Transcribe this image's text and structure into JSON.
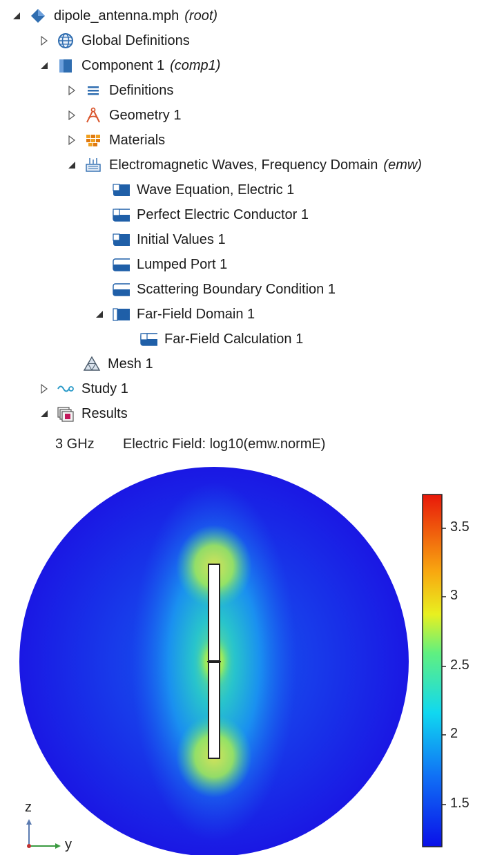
{
  "tree": {
    "root": {
      "label": "dipole_antenna.mph",
      "tag": "(root)"
    },
    "global_definitions": {
      "label": "Global Definitions"
    },
    "component": {
      "label": "Component 1",
      "tag": "(comp1)"
    },
    "definitions": {
      "label": "Definitions"
    },
    "geometry": {
      "label": "Geometry 1"
    },
    "materials": {
      "label": "Materials"
    },
    "physics": {
      "label": "Electromagnetic Waves, Frequency Domain",
      "tag": "(emw)"
    },
    "wave_equation": {
      "label": "Wave Equation, Electric 1"
    },
    "pec": {
      "label": "Perfect Electric Conductor 1"
    },
    "initial_values": {
      "label": "Initial Values 1"
    },
    "lumped_port": {
      "label": "Lumped Port 1"
    },
    "scattering": {
      "label": "Scattering Boundary Condition 1"
    },
    "far_field_domain": {
      "label": "Far-Field Domain 1"
    },
    "far_field_calc": {
      "label": "Far-Field Calculation 1"
    },
    "mesh": {
      "label": "Mesh 1"
    },
    "study": {
      "label": "Study 1"
    },
    "results": {
      "label": "Results"
    }
  },
  "plot": {
    "frequency": "3 GHz",
    "title": "Electric Field: log10(emw.normE)",
    "colorbar_ticks": [
      "3.5",
      "3",
      "2.5",
      "2",
      "1.5"
    ],
    "axis_z": "z",
    "axis_y": "y",
    "colors": {
      "low": "#1a10e8",
      "high": "#e8180a"
    }
  }
}
